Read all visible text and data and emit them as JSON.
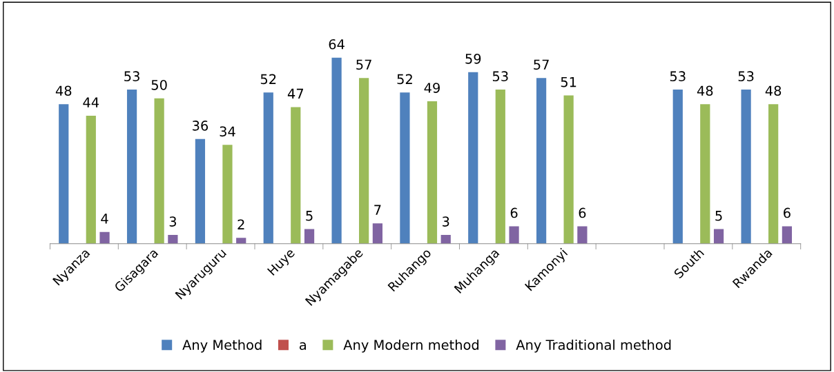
{
  "chart_data": {
    "type": "bar",
    "categories": [
      "Nyanza",
      "Gisagara",
      "Nyaruguru",
      "Huye",
      "Nyamagabe",
      "Ruhango",
      "Muhanga",
      "Kamonyi",
      null,
      "South",
      "Rwanda"
    ],
    "series": [
      {
        "name": "Any Method",
        "color": "#4f81bd",
        "values": [
          48,
          53,
          36,
          52,
          64,
          52,
          59,
          57,
          null,
          53,
          53
        ]
      },
      {
        "name": "a",
        "color": "#c0504d",
        "values": [
          null,
          null,
          null,
          null,
          null,
          null,
          null,
          null,
          null,
          null,
          null
        ]
      },
      {
        "name": "Any Modern method",
        "color": "#9bbb59",
        "values": [
          44,
          50,
          34,
          47,
          57,
          49,
          53,
          51,
          null,
          48,
          48
        ]
      },
      {
        "name": "Any Traditional method",
        "color": "#8064a2",
        "values": [
          4,
          3,
          2,
          5,
          7,
          3,
          6,
          6,
          null,
          5,
          6
        ]
      }
    ],
    "tick_labels": "x",
    "data_labels": true,
    "legend": "bottom",
    "grid": false
  }
}
